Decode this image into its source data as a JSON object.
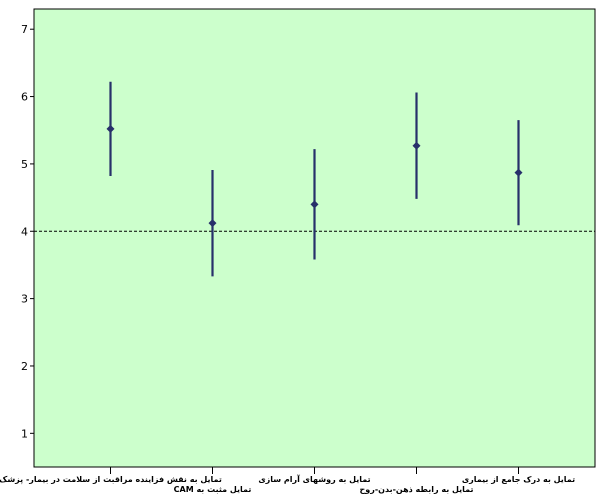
{
  "chart_data": {
    "type": "scatter",
    "subtype": "error-bar",
    "title": "",
    "xlabel": "",
    "ylabel": "",
    "ylim": [
      0.5,
      7.3
    ],
    "yticks": [
      1,
      2,
      3,
      4,
      5,
      6,
      7
    ],
    "reference_line": 4,
    "grid": false,
    "background_color": "#ccffcc",
    "marker_color": "#27306a",
    "categories": [
      "تمایل به نقش فزاینده مراقبت از سلامت در بیمار- پزشک",
      "تمایل مثبت به CAM",
      "تمایل به روشهای آرام سازی",
      "تمایل به رابطه ذهن-بدن-روح",
      "تمایل به درک جامع از بیماری"
    ],
    "means": [
      5.52,
      4.12,
      4.4,
      5.27,
      4.87
    ],
    "lower": [
      4.82,
      3.33,
      3.58,
      4.48,
      4.09
    ],
    "upper": [
      6.22,
      4.91,
      5.22,
      6.06,
      5.65
    ]
  }
}
